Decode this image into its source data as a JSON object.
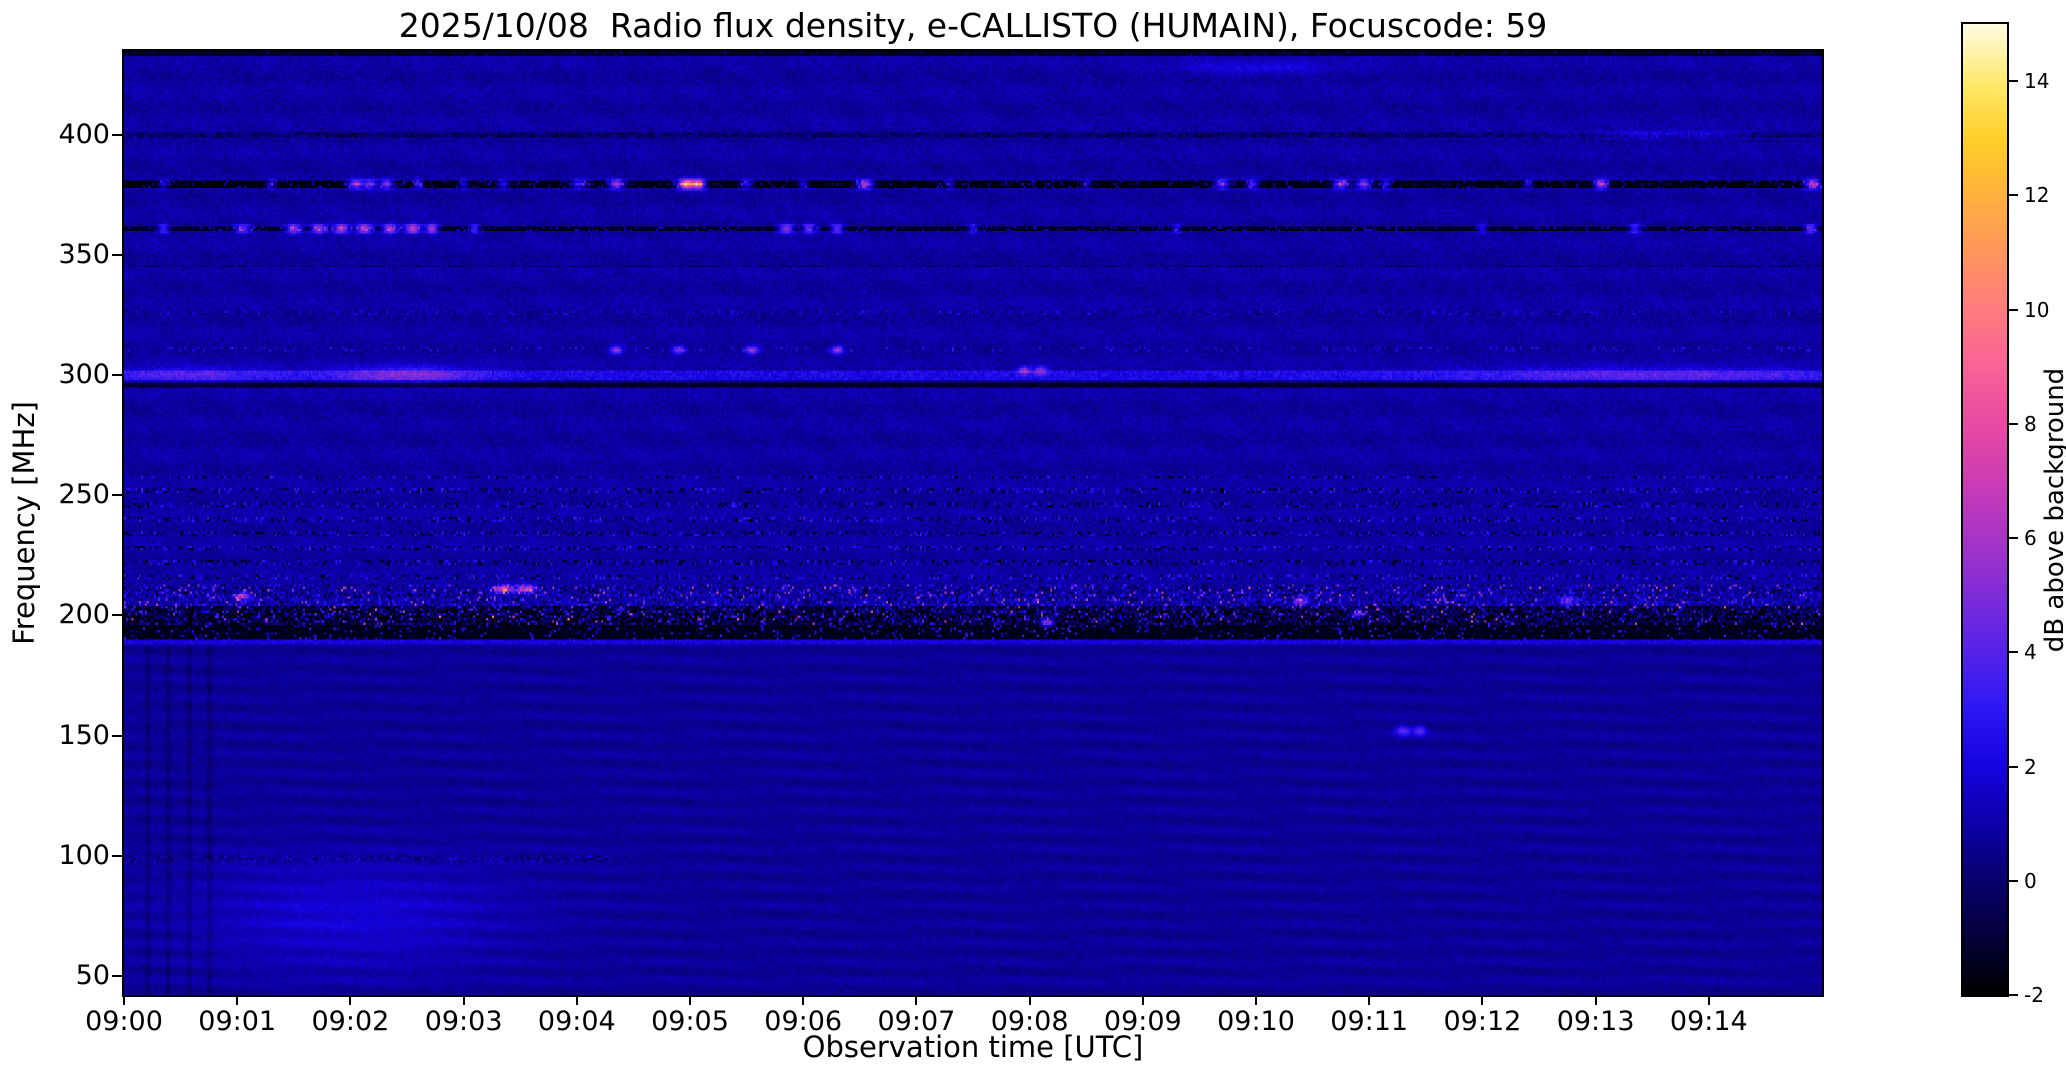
{
  "chart_data": {
    "type": "heatmap",
    "subtype": "radio-spectrogram",
    "title": "2025/10/08  Radio flux density, e-CALLISTO (HUMAIN), Focuscode: 59",
    "xlabel": "Observation time [UTC]",
    "ylabel": "Frequency [MHz]",
    "colorbar_label": "dB above background",
    "x_tick_labels": [
      "09:00",
      "09:01",
      "09:02",
      "09:03",
      "09:04",
      "09:05",
      "09:06",
      "09:07",
      "09:08",
      "09:09",
      "09:10",
      "09:11",
      "09:12",
      "09:13",
      "09:14"
    ],
    "x_range_minutes": [
      0,
      15
    ],
    "y_tick_values": [
      50,
      100,
      150,
      200,
      250,
      300,
      350,
      400
    ],
    "y_range_mhz": [
      42,
      435
    ],
    "colorbar_tick_values": [
      -2,
      0,
      2,
      4,
      6,
      8,
      10,
      12,
      14
    ],
    "value_range_db": [
      -2,
      15
    ],
    "background_level_db": 0.9,
    "colormap_stops": [
      [
        0.0,
        "#000000"
      ],
      [
        0.059,
        "#04003a"
      ],
      [
        0.118,
        "#08006e"
      ],
      [
        0.176,
        "#0d00a8"
      ],
      [
        0.235,
        "#1503e0"
      ],
      [
        0.294,
        "#2d17f2"
      ],
      [
        0.353,
        "#5523ea"
      ],
      [
        0.412,
        "#7f2cd8"
      ],
      [
        0.471,
        "#a834c6"
      ],
      [
        0.529,
        "#cc3cb4"
      ],
      [
        0.588,
        "#e94aa4"
      ],
      [
        0.647,
        "#f96296"
      ],
      [
        0.706,
        "#ff7c7e"
      ],
      [
        0.765,
        "#ff955c"
      ],
      [
        0.824,
        "#ffb13e"
      ],
      [
        0.882,
        "#ffce28"
      ],
      [
        0.941,
        "#ffe96e"
      ],
      [
        1.0,
        "#fffce0"
      ]
    ],
    "rfi_lines": [
      {
        "f": 434.3,
        "hw": 1.2,
        "mode": "set",
        "base": -0.9,
        "jit": 0.9,
        "sp": 0.05,
        "sa": 1.5
      },
      {
        "f": 400.3,
        "hw": 0.9,
        "mode": "add",
        "base": -0.7,
        "jit": 0.5,
        "sp": 0.18,
        "sa": -1.0
      },
      {
        "f": 379.6,
        "hw": 1.3,
        "mode": "set",
        "base": -1.35,
        "jit": 0.7,
        "sp": 0.1,
        "sa": 2.6
      },
      {
        "f": 361.0,
        "hw": 1.3,
        "mode": "set",
        "base": -1.15,
        "jit": 0.7,
        "sp": 0.14,
        "sa": 2.6
      },
      {
        "f": 345.5,
        "hw": 0.8,
        "mode": "add",
        "base": -0.45,
        "jit": 0.4,
        "sp": 0.2,
        "sa": -0.8
      },
      {
        "f": 326.0,
        "hw": 1.3,
        "mode": "add",
        "base": -0.15,
        "jit": 0.55,
        "sp": 0.16,
        "sa": 1.2
      },
      {
        "f": 311.0,
        "hw": 0.9,
        "mode": "add",
        "base": 0.0,
        "jit": 0.3,
        "sp": 0.1,
        "sa": 1.6
      },
      {
        "f": 300.2,
        "hw": 1.7,
        "mode": "add",
        "base": 1.5,
        "jit": 0.5,
        "sp": 0,
        "sa": 0
      },
      {
        "f": 296.2,
        "hw": 1.0,
        "mode": "set",
        "base": -0.9,
        "jit": 0.8,
        "sp": 0,
        "sa": 0
      }
    ],
    "noise_bands": [
      {
        "range": [
          214,
          258
        ],
        "kind": "periodic"
      },
      {
        "range": [
          204,
          213.5
        ],
        "kind": "mixed"
      },
      {
        "range": [
          196,
          204
        ],
        "kind": "darkdots"
      },
      {
        "range": [
          190,
          196
        ],
        "kind": "black"
      },
      {
        "range": [
          187.6,
          190
        ],
        "kind": "thinline"
      }
    ],
    "bursts": [
      {
        "t": 0.35,
        "f": 379.6,
        "a": 4,
        "tw": 0.03,
        "fw": 1.2
      },
      {
        "t": 1.3,
        "f": 379.6,
        "a": 4,
        "tw": 0.03,
        "fw": 1.2
      },
      {
        "t": 2.05,
        "f": 379.6,
        "a": 8,
        "tw": 0.05,
        "fw": 1.2
      },
      {
        "t": 2.18,
        "f": 379.6,
        "a": 7,
        "tw": 0.04,
        "fw": 1.2
      },
      {
        "t": 2.32,
        "f": 379.6,
        "a": 7.5,
        "tw": 0.04,
        "fw": 1.2
      },
      {
        "t": 2.6,
        "f": 379.6,
        "a": 5,
        "tw": 0.03,
        "fw": 1.2
      },
      {
        "t": 3.0,
        "f": 379.6,
        "a": 4,
        "tw": 0.03,
        "fw": 1.2
      },
      {
        "t": 3.35,
        "f": 379.6,
        "a": 4.5,
        "tw": 0.04,
        "fw": 1.2
      },
      {
        "t": 4.02,
        "f": 379.6,
        "a": 5.5,
        "tw": 0.05,
        "fw": 1.2
      },
      {
        "t": 4.35,
        "f": 379.6,
        "a": 8,
        "tw": 0.05,
        "fw": 1.2
      },
      {
        "t": 4.97,
        "f": 379.6,
        "a": 14,
        "tw": 0.05,
        "fw": 1.2
      },
      {
        "t": 5.08,
        "f": 379.6,
        "a": 11.5,
        "tw": 0.04,
        "fw": 1.2
      },
      {
        "t": 5.5,
        "f": 379.6,
        "a": 4.5,
        "tw": 0.04,
        "fw": 1.2
      },
      {
        "t": 6.0,
        "f": 379.6,
        "a": 4,
        "tw": 0.03,
        "fw": 1.2
      },
      {
        "t": 6.55,
        "f": 379.6,
        "a": 8,
        "tw": 0.05,
        "fw": 1.2
      },
      {
        "t": 7.3,
        "f": 379.6,
        "a": 3.5,
        "tw": 0.03,
        "fw": 1.2
      },
      {
        "t": 8.5,
        "f": 379.6,
        "a": 3.5,
        "tw": 0.03,
        "fw": 1.2
      },
      {
        "t": 9.7,
        "f": 379.6,
        "a": 6.5,
        "tw": 0.05,
        "fw": 1.2
      },
      {
        "t": 9.97,
        "f": 379.6,
        "a": 5.5,
        "tw": 0.04,
        "fw": 1.2
      },
      {
        "t": 10.75,
        "f": 379.6,
        "a": 7.5,
        "tw": 0.05,
        "fw": 1.2
      },
      {
        "t": 10.95,
        "f": 379.6,
        "a": 7.5,
        "tw": 0.05,
        "fw": 1.2
      },
      {
        "t": 11.15,
        "f": 379.6,
        "a": 5,
        "tw": 0.03,
        "fw": 1.2
      },
      {
        "t": 12.4,
        "f": 379.6,
        "a": 4,
        "tw": 0.03,
        "fw": 1.2
      },
      {
        "t": 13.05,
        "f": 379.6,
        "a": 9,
        "tw": 0.04,
        "fw": 1.2
      },
      {
        "t": 14.92,
        "f": 379.6,
        "a": 8.5,
        "tw": 0.05,
        "fw": 1.2
      },
      {
        "t": 0.35,
        "f": 361.0,
        "a": 5,
        "tw": 0.04,
        "fw": 1.2
      },
      {
        "t": 1.05,
        "f": 361.0,
        "a": 6,
        "tw": 0.05,
        "fw": 1.2
      },
      {
        "t": 1.5,
        "f": 361.0,
        "a": 7,
        "tw": 0.05,
        "fw": 1.2
      },
      {
        "t": 1.72,
        "f": 361.0,
        "a": 7.5,
        "tw": 0.05,
        "fw": 1.2
      },
      {
        "t": 1.92,
        "f": 361.0,
        "a": 8,
        "tw": 0.05,
        "fw": 1.2
      },
      {
        "t": 2.12,
        "f": 361.0,
        "a": 8,
        "tw": 0.05,
        "fw": 1.2
      },
      {
        "t": 2.35,
        "f": 361.0,
        "a": 8,
        "tw": 0.05,
        "fw": 1.2
      },
      {
        "t": 2.55,
        "f": 361.0,
        "a": 9,
        "tw": 0.05,
        "fw": 1.2
      },
      {
        "t": 2.72,
        "f": 361.0,
        "a": 8,
        "tw": 0.04,
        "fw": 1.2
      },
      {
        "t": 3.1,
        "f": 361.0,
        "a": 5,
        "tw": 0.03,
        "fw": 1.2
      },
      {
        "t": 5.85,
        "f": 361.0,
        "a": 7,
        "tw": 0.05,
        "fw": 1.2
      },
      {
        "t": 6.05,
        "f": 361.0,
        "a": 6.5,
        "tw": 0.04,
        "fw": 1.2
      },
      {
        "t": 6.3,
        "f": 361.0,
        "a": 6,
        "tw": 0.04,
        "fw": 1.2
      },
      {
        "t": 7.5,
        "f": 361.0,
        "a": 4,
        "tw": 0.03,
        "fw": 1.2
      },
      {
        "t": 9.3,
        "f": 361.0,
        "a": 4,
        "tw": 0.03,
        "fw": 1.2
      },
      {
        "t": 12.0,
        "f": 361.0,
        "a": 4,
        "tw": 0.03,
        "fw": 1.2
      },
      {
        "t": 13.35,
        "f": 361.0,
        "a": 5,
        "tw": 0.04,
        "fw": 1.2
      },
      {
        "t": 14.9,
        "f": 361.0,
        "a": 6,
        "tw": 0.04,
        "fw": 1.2
      },
      {
        "t": 0.6,
        "f": 300.2,
        "a": 1.8,
        "tw": 0.5,
        "fw": 2.5
      },
      {
        "t": 2.5,
        "f": 300.2,
        "a": 3.0,
        "tw": 0.45,
        "fw": 2.5
      },
      {
        "t": 13.5,
        "f": 300.2,
        "a": 2.0,
        "tw": 1.2,
        "fw": 2.2
      },
      {
        "t": 4.35,
        "f": 310.5,
        "a": 5,
        "tw": 0.04,
        "fw": 1.2
      },
      {
        "t": 4.9,
        "f": 310.5,
        "a": 4.5,
        "tw": 0.04,
        "fw": 1.2
      },
      {
        "t": 5.55,
        "f": 310.5,
        "a": 5.5,
        "tw": 0.04,
        "fw": 1.2
      },
      {
        "t": 6.3,
        "f": 310.5,
        "a": 5,
        "tw": 0.04,
        "fw": 1.2
      },
      {
        "t": 7.95,
        "f": 302.0,
        "a": 4.5,
        "tw": 0.04,
        "fw": 1.2
      },
      {
        "t": 8.1,
        "f": 302.0,
        "a": 4,
        "tw": 0.04,
        "fw": 1.2
      },
      {
        "t": 13.6,
        "f": 400.3,
        "a": 2.2,
        "tw": 0.55,
        "fw": 1.0
      },
      {
        "t": 10.0,
        "f": 428.0,
        "a": 1.2,
        "tw": 0.5,
        "fw": 2.0
      },
      {
        "t": 3.35,
        "f": 211.0,
        "a": 6.5,
        "tw": 0.07,
        "fw": 1.2
      },
      {
        "t": 3.55,
        "f": 211.0,
        "a": 6.5,
        "tw": 0.06,
        "fw": 1.2
      },
      {
        "t": 1.05,
        "f": 208.0,
        "a": 6,
        "tw": 0.04,
        "fw": 1.2
      },
      {
        "t": 8.15,
        "f": 197.0,
        "a": 6.5,
        "tw": 0.04,
        "fw": 1.2
      },
      {
        "t": 10.4,
        "f": 206.0,
        "a": 4.5,
        "tw": 0.04,
        "fw": 1.2
      },
      {
        "t": 10.9,
        "f": 201.0,
        "a": 5,
        "tw": 0.04,
        "fw": 1.2
      },
      {
        "t": 12.75,
        "f": 206.0,
        "a": 4.5,
        "tw": 0.04,
        "fw": 1.2
      },
      {
        "t": 11.3,
        "f": 152.0,
        "a": 3.5,
        "tw": 0.05,
        "fw": 1.5
      },
      {
        "t": 11.45,
        "f": 152.0,
        "a": 3.5,
        "tw": 0.04,
        "fw": 1.5
      },
      {
        "t": 2.0,
        "f": 75.0,
        "a": 1.1,
        "tw": 1.0,
        "fw": 16
      }
    ]
  }
}
